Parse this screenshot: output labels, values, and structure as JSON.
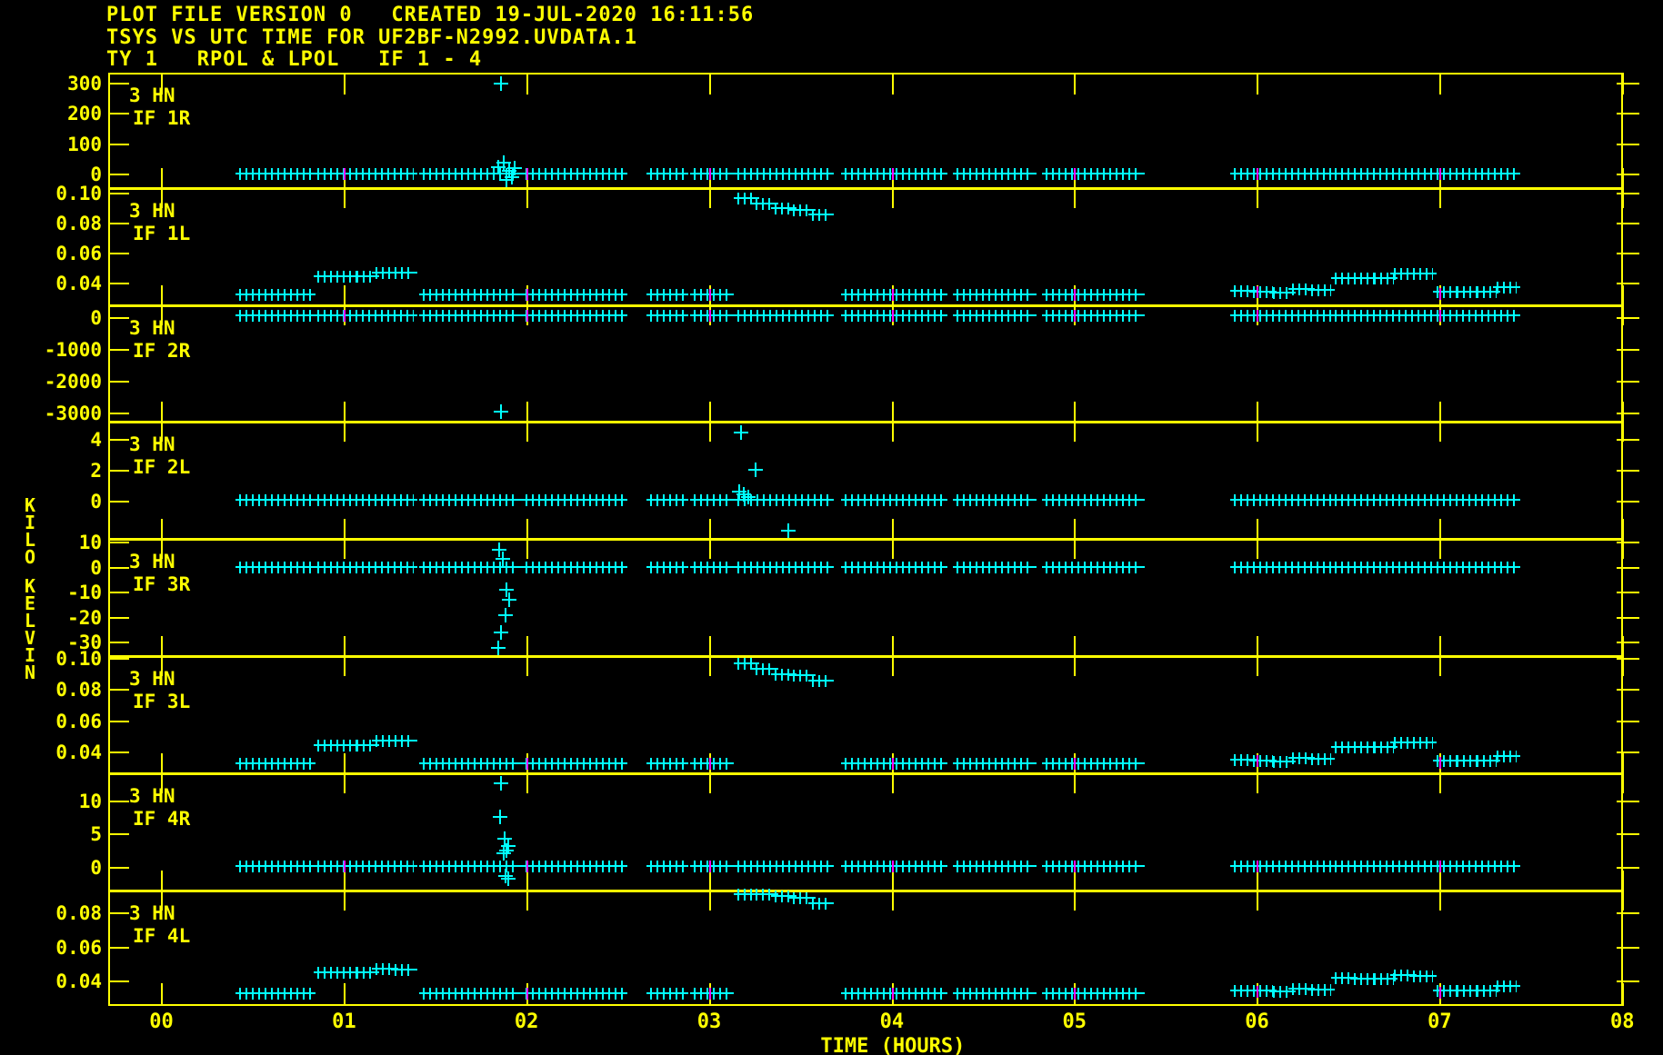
{
  "header": {
    "line1": "PLOT FILE VERSION 0   CREATED 19-JUL-2020 16:11:56",
    "line2": "TSYS VS UTC TIME FOR UF2BF-N2992.UVDATA.1",
    "line3": "TY 1   RPOL & LPOL   IF 1 - 4"
  },
  "colors": {
    "background": "#000000",
    "axis": "#FFFF00",
    "data": "#00FFFF",
    "overlap": "#FF00FF"
  },
  "axes": {
    "x_label": "TIME (HOURS)",
    "y_label": "KILO KELVIN",
    "y_label_parts": [
      "KILO",
      "KELVIN"
    ],
    "x_tick_labels": [
      "00",
      "01",
      "02",
      "03",
      "04",
      "05",
      "06",
      "07",
      "08"
    ]
  },
  "chart_data": {
    "type": "scatter",
    "title": "TSYS VS UTC TIME FOR UF2BF-N2992.UVDATA.1",
    "xlabel": "TIME (HOURS)",
    "ylabel": "KILO KELVIN",
    "xlim": [
      -0.295,
      8.0
    ],
    "x_hours": [
      0,
      1,
      2,
      3,
      4,
      5,
      6,
      7,
      8
    ],
    "marker": "plus",
    "segments_hours": [
      [
        0.42,
        0.82
      ],
      [
        0.85,
        1.38
      ],
      [
        1.43,
        1.95
      ],
      [
        1.99,
        2.53
      ],
      [
        2.67,
        2.86
      ],
      [
        2.91,
        3.11
      ],
      [
        3.15,
        3.66
      ],
      [
        3.74,
        4.28
      ],
      [
        4.35,
        4.77
      ],
      [
        4.84,
        5.36
      ],
      [
        5.87,
        6.4
      ],
      [
        6.42,
        6.96
      ],
      [
        6.98,
        7.42
      ]
    ],
    "panels": [
      {
        "station": "3 HN",
        "if_label": "IF 1R",
        "ylim": [
          -45,
          336
        ],
        "y_ticks": [
          {
            "label": "300",
            "v": 300
          },
          {
            "label": "200",
            "v": 200
          },
          {
            "label": "100",
            "v": 100
          },
          {
            "label": "0",
            "v": 0
          }
        ],
        "flat": 2,
        "values": null,
        "outliers": [
          [
            1.855,
            300
          ],
          [
            1.84,
            25
          ],
          [
            1.87,
            40
          ],
          [
            1.885,
            -18
          ],
          [
            1.9,
            12
          ],
          [
            1.915,
            -8
          ],
          [
            1.93,
            20
          ]
        ]
      },
      {
        "station": "3 HN",
        "if_label": "IF 1L",
        "ylim": [
          0.0255,
          0.1036
        ],
        "y_ticks": [
          {
            "label": "0.10",
            "v": 0.1
          },
          {
            "label": "0.08",
            "v": 0.08
          },
          {
            "label": "0.06",
            "v": 0.06
          },
          {
            "label": "0.04",
            "v": 0.04
          }
        ],
        "flat": null,
        "values": [
          [
            0.0325,
            0.0335
          ],
          [
            0.0435,
            0.0478
          ],
          [
            0.033,
            0.033
          ],
          [
            0.033,
            0.033
          ],
          [
            0.033,
            0.033
          ],
          [
            0.033,
            0.033
          ],
          [
            0.0975,
            0.0845
          ],
          [
            0.033,
            0.033
          ],
          [
            0.033,
            0.033
          ],
          [
            0.033,
            0.033
          ],
          [
            0.034,
            0.036
          ],
          [
            0.042,
            0.047
          ],
          [
            0.0335,
            0.037
          ]
        ],
        "outliers": []
      },
      {
        "station": "3 HN",
        "if_label": "IF 2R",
        "ylim": [
          -3257,
          400
        ],
        "y_ticks": [
          {
            "label": "0",
            "v": 0
          },
          {
            "label": "-1000",
            "v": -1000
          },
          {
            "label": "-2000",
            "v": -2000
          },
          {
            "label": "-3000",
            "v": -3000
          }
        ],
        "flat": 80,
        "values": null,
        "outliers": [
          [
            1.855,
            -2940
          ]
        ]
      },
      {
        "station": "3 HN",
        "if_label": "IF 2L",
        "ylim": [
          -2.41,
          5.18
        ],
        "y_ticks": [
          {
            "label": "4",
            "v": 4
          },
          {
            "label": "2",
            "v": 2
          },
          {
            "label": "0",
            "v": 0
          }
        ],
        "flat": 0.1,
        "values": null,
        "outliers": [
          [
            3.17,
            4.5
          ],
          [
            3.25,
            2.05
          ],
          [
            3.43,
            -1.9
          ],
          [
            3.16,
            0.65
          ],
          [
            3.185,
            0.45
          ],
          [
            3.21,
            0.3
          ]
        ]
      },
      {
        "station": "3 HN",
        "if_label": "IF 3R",
        "ylim": [
          -35.3,
          11.6
        ],
        "y_ticks": [
          {
            "label": "10",
            "v": 10
          },
          {
            "label": "0",
            "v": 0
          },
          {
            "label": "-10",
            "v": -10
          },
          {
            "label": "-20",
            "v": -20
          },
          {
            "label": "-30",
            "v": -30
          }
        ],
        "flat": 0.3,
        "values": null,
        "outliers": [
          [
            1.845,
            7.4
          ],
          [
            1.865,
            3.7
          ],
          [
            1.885,
            -8.9
          ],
          [
            1.9,
            -12.9
          ],
          [
            1.88,
            -18.9
          ],
          [
            1.855,
            -25.9
          ],
          [
            1.84,
            -32.2
          ]
        ]
      },
      {
        "station": "3 HN",
        "if_label": "IF 3L",
        "ylim": [
          0.0265,
          0.1017
        ],
        "y_ticks": [
          {
            "label": "0.10",
            "v": 0.1
          },
          {
            "label": "0.08",
            "v": 0.08
          },
          {
            "label": "0.06",
            "v": 0.06
          },
          {
            "label": "0.04",
            "v": 0.04
          }
        ],
        "flat": null,
        "values": [
          [
            0.0325,
            0.0335
          ],
          [
            0.0435,
            0.0478
          ],
          [
            0.033,
            0.033
          ],
          [
            0.033,
            0.033
          ],
          [
            0.033,
            0.033
          ],
          [
            0.033,
            0.033
          ],
          [
            0.0975,
            0.0845
          ],
          [
            0.033,
            0.033
          ],
          [
            0.033,
            0.033
          ],
          [
            0.033,
            0.033
          ],
          [
            0.034,
            0.036
          ],
          [
            0.042,
            0.047
          ],
          [
            0.0335,
            0.037
          ]
        ],
        "outliers": []
      },
      {
        "station": "3 HN",
        "if_label": "IF 4R",
        "ylim": [
          -3.42,
          14.2
        ],
        "y_ticks": [
          {
            "label": "10",
            "v": 10
          },
          {
            "label": "5",
            "v": 5
          },
          {
            "label": "0",
            "v": 0
          }
        ],
        "flat": 0.27,
        "values": null,
        "outliers": [
          [
            1.855,
            12.7
          ],
          [
            1.85,
            7.6
          ],
          [
            1.875,
            4.3
          ],
          [
            1.885,
            2.6
          ],
          [
            1.895,
            3.3
          ],
          [
            1.87,
            2.2
          ],
          [
            1.88,
            -1.3
          ],
          [
            1.895,
            -1.7
          ]
        ]
      },
      {
        "station": "3 HN",
        "if_label": "IF 4L",
        "ylim": [
          0.0256,
          0.0935
        ],
        "y_ticks": [
          {
            "label": "0.08",
            "v": 0.08
          },
          {
            "label": "0.06",
            "v": 0.06
          },
          {
            "label": "0.04",
            "v": 0.04
          }
        ],
        "flat": null,
        "values": [
          [
            0.0325,
            0.0335
          ],
          [
            0.0445,
            0.0475
          ],
          [
            0.033,
            0.033
          ],
          [
            0.033,
            0.033
          ],
          [
            0.033,
            0.033
          ],
          [
            0.033,
            0.033
          ],
          [
            0.0975,
            0.0845
          ],
          [
            0.033,
            0.033
          ],
          [
            0.033,
            0.033
          ],
          [
            0.033,
            0.033
          ],
          [
            0.034,
            0.0355
          ],
          [
            0.041,
            0.0435
          ],
          [
            0.0335,
            0.037
          ]
        ],
        "outliers": []
      }
    ]
  }
}
